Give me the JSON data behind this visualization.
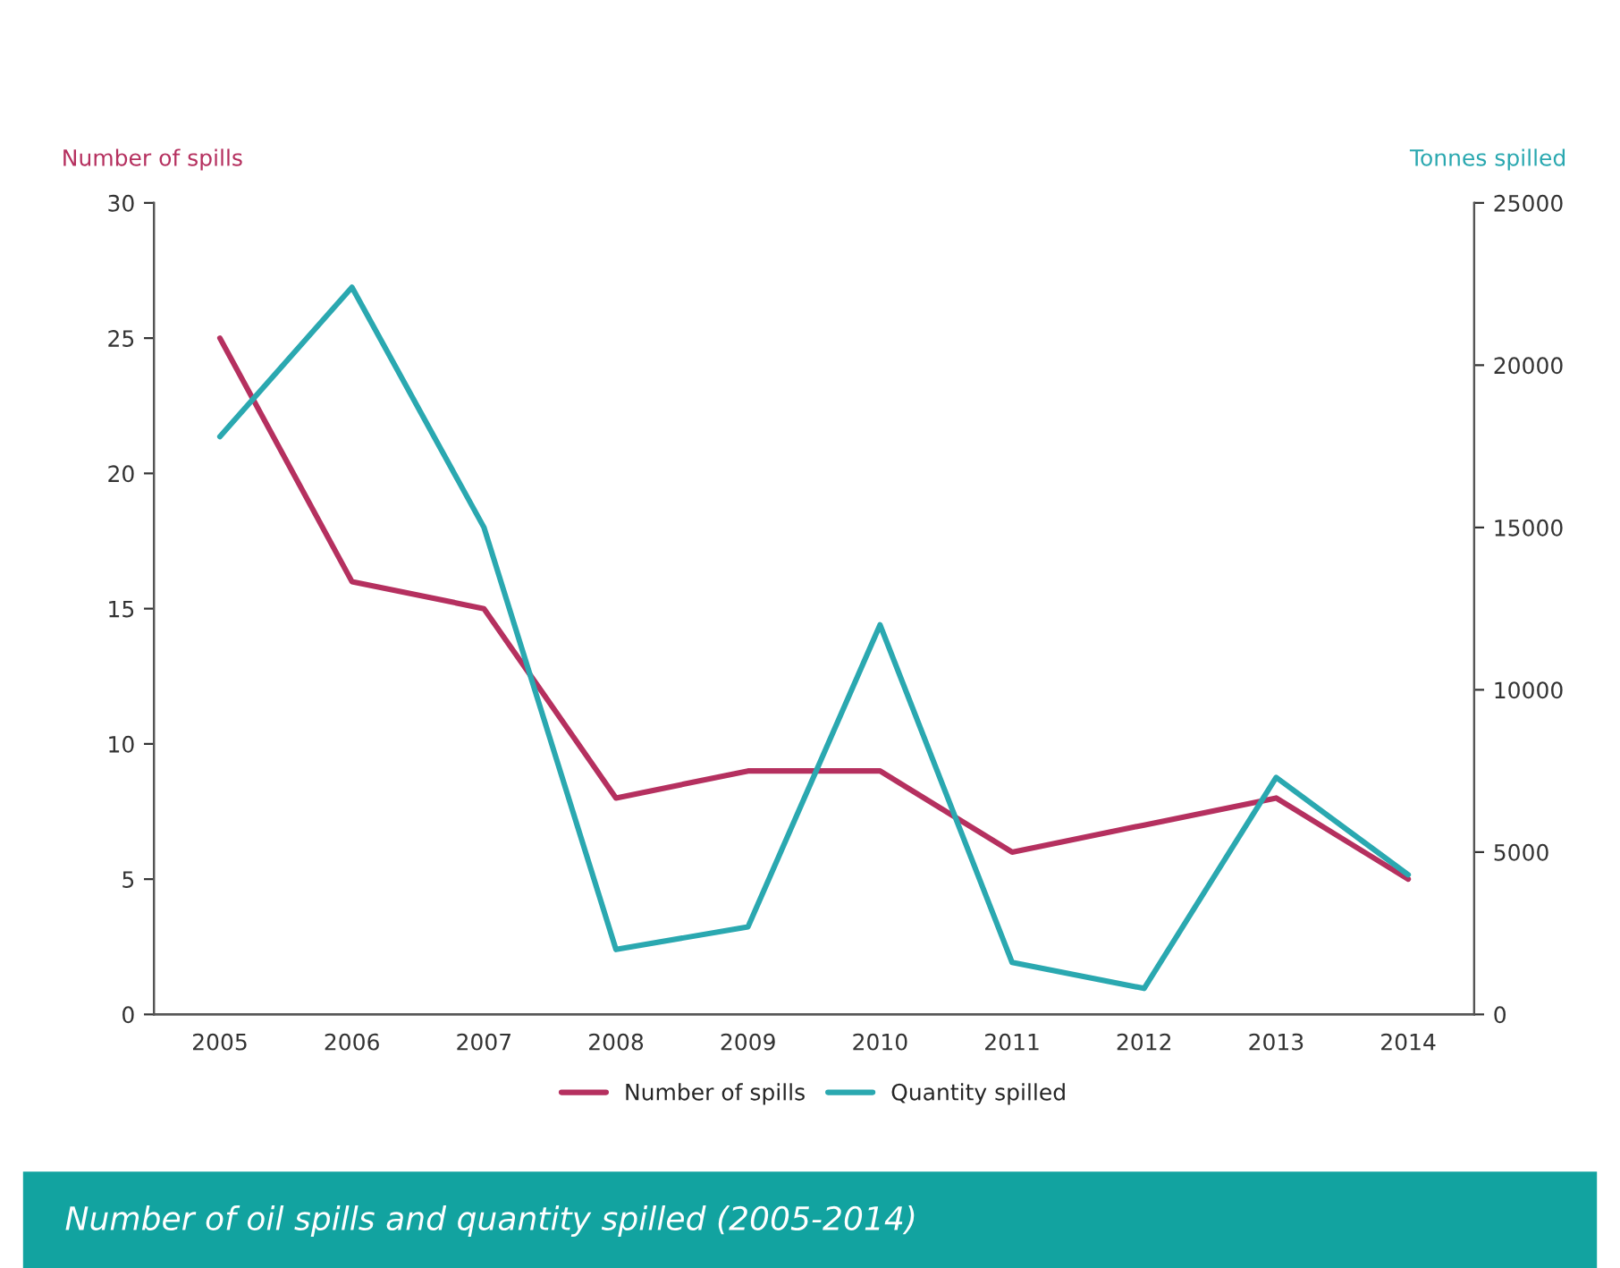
{
  "chart_data": {
    "type": "line",
    "title": "Number of oil spills and quantity spilled (2005-2014)",
    "ylabel": "Number of spills",
    "y2label": "Tonnes spilled",
    "categories": [
      "2005",
      "2006",
      "2007",
      "2008",
      "2009",
      "2010",
      "2011",
      "2012",
      "2013",
      "2014"
    ],
    "series": [
      {
        "name": "Number of spills",
        "color": "#b5305f",
        "values": [
          25,
          16,
          15,
          8,
          9,
          9,
          6,
          7,
          8,
          5
        ]
      },
      {
        "name": "Quantity spilled",
        "color": "#2aa8b0",
        "axis": "y2",
        "values": [
          17800,
          22400,
          15000,
          2000,
          2700,
          12000,
          1600,
          800,
          7300,
          4300
        ]
      }
    ],
    "ylim": [
      0,
      30
    ],
    "yticks": [
      0,
      5,
      10,
      15,
      20,
      25,
      30
    ],
    "y2lim": [
      0,
      25000
    ],
    "y2ticks": [
      0,
      5000,
      10000,
      15000,
      20000,
      25000
    ],
    "grid": false,
    "legend": "bottom",
    "marker": "none",
    "line_style": "solid"
  }
}
